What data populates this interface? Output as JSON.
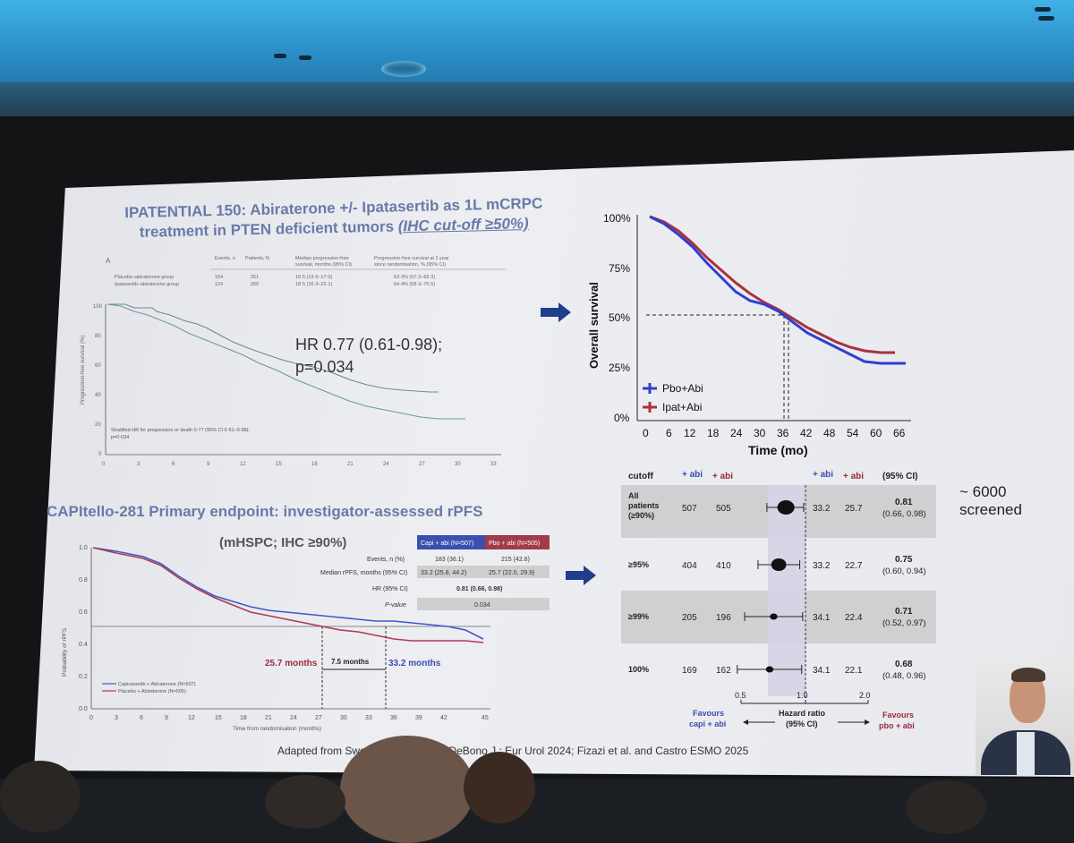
{
  "top_left": {
    "title_line1": "IPATENTIAL 150: Abiraterone +/- Ipatasertib as 1L mCRPC",
    "title_line2_plain": "treatment in PTEN deficient tumors ",
    "title_line2_underlined": "(IHC cut-off ≥50%)",
    "panel_letter": "A",
    "table_headers": [
      "Events, n",
      "Patients, N",
      "Median progression-free survival, months (95% CI)",
      "Progression-free survival at 1 year since randomisation, % (95% CI)"
    ],
    "rows": [
      {
        "label": "Placebo–abiraterone group",
        "events": "154",
        "patients": "261",
        "median": "16·5 (13·9–17·0)",
        "one_year": "63·3% (57·3–69·3)"
      },
      {
        "label": "Ipatasertib–abiraterone group",
        "events": "124",
        "patients": "260",
        "median": "18·5 (16·3–22·1)",
        "one_year": "64·4% (58·3–70·5)"
      }
    ],
    "hr_text": "HR 0.77 (0.61-0.98);",
    "p_text": "p=0.034",
    "stratified_line1": "Stratified HR for progression or death 0·77 (95% CI 0·61–0·98);",
    "stratified_line2": "p=0·034",
    "y_axis_label": "Progression-free survival (%)",
    "y_ticks": [
      "100",
      "80",
      "60",
      "40",
      "20",
      "0"
    ],
    "x_ticks": [
      "0",
      "3",
      "6",
      "9",
      "12",
      "15",
      "18",
      "21",
      "24",
      "27",
      "30",
      "33"
    ]
  },
  "top_right": {
    "y_axis_label": "Overall survival",
    "x_axis_label": "Time (mo)",
    "y_ticks": [
      "100%",
      "75%",
      "50%",
      "25%",
      "0%"
    ],
    "x_ticks": [
      "0",
      "6",
      "12",
      "18",
      "24",
      "30",
      "36",
      "42",
      "48",
      "54",
      "60",
      "66"
    ],
    "legend": [
      {
        "name": "Pbo+Abi",
        "color": "#2f3fd0"
      },
      {
        "name": "Ipat+Abi",
        "color": "#a8323d"
      }
    ]
  },
  "bottom_left": {
    "title": "CAPItello-281 Primary endpoint: investigator-assessed rPFS",
    "subtitle": "(mHSPC; IHC ≥90%)",
    "col_capi": "Capi + abi (N=507)",
    "col_pbo": "Pbo + abi (N=505)",
    "table": [
      {
        "label": "Events, n (%)",
        "capi": "183 (36.1)",
        "pbo": "215 (42.6)"
      },
      {
        "label": "Median rPFS, months (95% CI)",
        "capi": "33.2 (25.8, 44.2)",
        "pbo": "25.7 (22.0, 29.9)"
      },
      {
        "label": "HR (95% CI)",
        "both": "0.81 (0.66, 0.98)"
      },
      {
        "label": "P-value",
        "both": "0.034"
      }
    ],
    "annot_left": "25.7 months",
    "annot_mid": "7.5 months",
    "annot_right": "33.2 months",
    "legend_1": "Capivasertib + Abiraterone (N=507)",
    "legend_2": "Placebo + Abiraterone (N=505)",
    "y_axis_label": "Probability of rPFS",
    "x_axis_label": "Time from randomisation (months)",
    "y_ticks": [
      "1.0",
      "0.8",
      "0.6",
      "0.4",
      "0.2",
      "0.0"
    ],
    "x_ticks": [
      "0",
      "3",
      "6",
      "9",
      "12",
      "15",
      "18",
      "21",
      "24",
      "27",
      "30",
      "33",
      "36",
      "39",
      "42",
      "45"
    ]
  },
  "forest": {
    "headers": {
      "cutoff": "cutoff",
      "capi_n": "+ abi",
      "pbo_n": "+ abi",
      "capi_med": "+ abi",
      "pbo_med": "+ abi",
      "hr": "(95% CI)"
    },
    "rows": [
      {
        "cutoff_l1": "All",
        "cutoff_l2": "patients",
        "cutoff_l3": "(≥90%)",
        "n1": "507",
        "n2": "505",
        "m1": "33.2",
        "m2": "25.7",
        "hr": "0.81",
        "ci": "(0.66, 0.98)",
        "hr_value": 0.81,
        "lo": 0.66,
        "hi": 0.98
      },
      {
        "cutoff_l1": "≥95%",
        "cutoff_l2": "",
        "cutoff_l3": "",
        "n1": "404",
        "n2": "410",
        "m1": "33.2",
        "m2": "22.7",
        "hr": "0.75",
        "ci": "(0.60, 0.94)",
        "hr_value": 0.75,
        "lo": 0.6,
        "hi": 0.94
      },
      {
        "cutoff_l1": "≥99%",
        "cutoff_l2": "",
        "cutoff_l3": "",
        "n1": "205",
        "n2": "196",
        "m1": "34.1",
        "m2": "22.4",
        "hr": "0.71",
        "ci": "(0.52, 0.97)",
        "hr_value": 0.71,
        "lo": 0.52,
        "hi": 0.97
      },
      {
        "cutoff_l1": "100%",
        "cutoff_l2": "",
        "cutoff_l3": "",
        "n1": "169",
        "n2": "162",
        "m1": "34.1",
        "m2": "22.1",
        "hr": "0.68",
        "ci": "(0.48, 0.96)",
        "hr_value": 0.68,
        "lo": 0.48,
        "hi": 0.96
      }
    ],
    "axis_ticks": [
      "0.5",
      "1.0",
      "2.0"
    ],
    "favours_left_1": "Favours",
    "favours_left_2": "capi + abi",
    "axis_label_1": "Hazard ratio",
    "axis_label_2": "(95% CI)",
    "favours_right_1": "Favours",
    "favours_right_2": "pbo + abi"
  },
  "screened_1": "~ 6000",
  "screened_2": "screened",
  "footer": "Adapted from Swe          1. DeBono et al. DeBono J : Eur Urol 2024; Fizazi et al. and Castro ESMO 2025"
}
